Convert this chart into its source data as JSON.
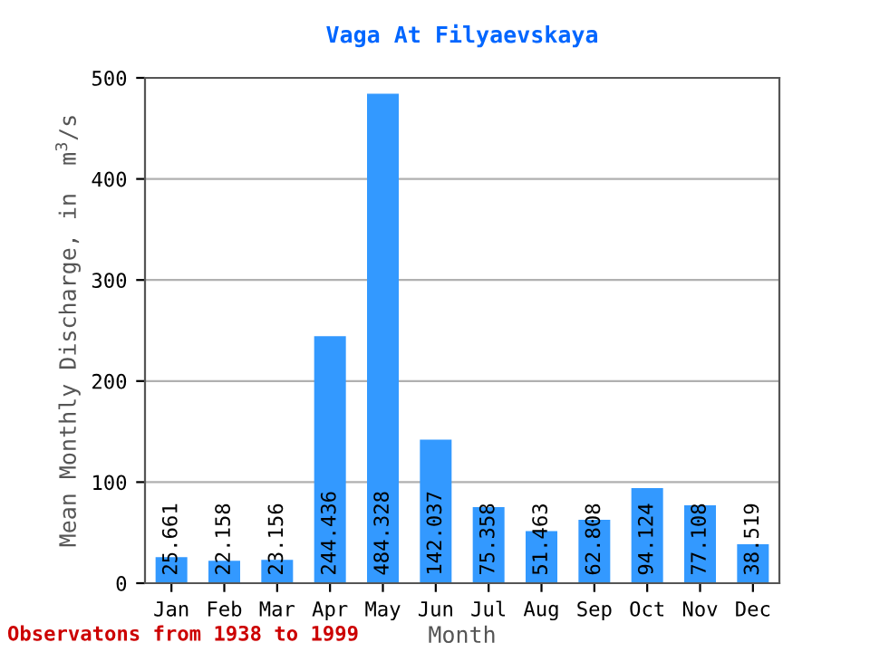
{
  "chart_data": {
    "type": "bar",
    "title": "Vaga At Filyaevskaya",
    "xlabel": "Month",
    "ylabel": "Mean Monthly Discharge, in  m$^{3}$/s",
    "annotations": [
      "Observatons from 1938 to 1999"
    ],
    "categories": [
      "Jan",
      "Feb",
      "Mar",
      "Apr",
      "May",
      "Jun",
      "Jul",
      "Aug",
      "Sep",
      "Oct",
      "Nov",
      "Dec"
    ],
    "values": [
      25.661,
      22.158,
      23.156,
      244.436,
      484.328,
      142.037,
      75.358,
      51.463,
      62.808,
      94.124,
      77.108,
      38.519
    ],
    "color": "#3399ff",
    "ylim": [
      0,
      500
    ],
    "yticks": [
      0,
      100,
      200,
      300,
      400,
      500
    ],
    "grid": "y",
    "data_labels": true
  }
}
